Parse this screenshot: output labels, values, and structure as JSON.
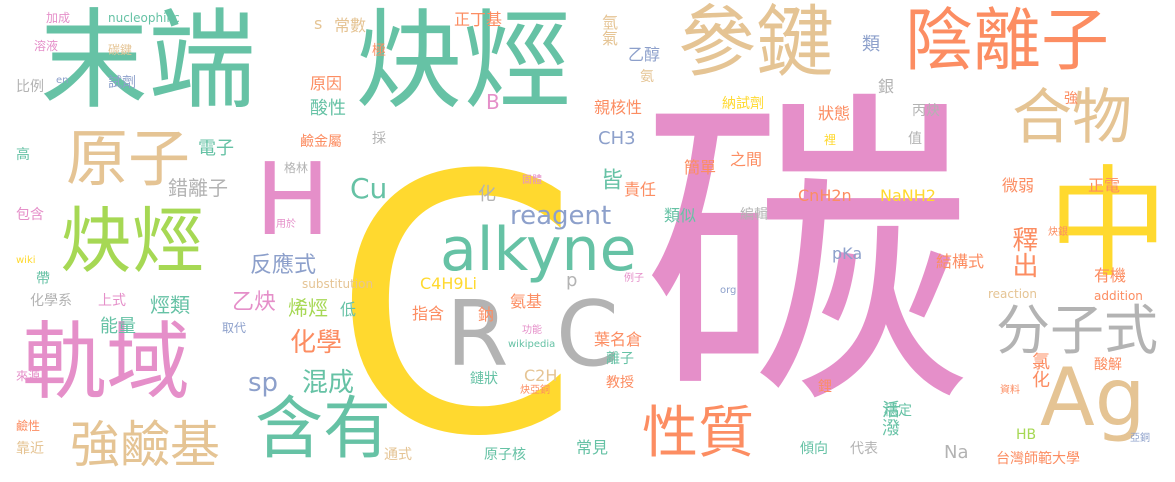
{
  "palette": {
    "pink": "#e58fc9",
    "green": "#66c2a5",
    "yellow": "#ffd92f",
    "tan": "#e5c494",
    "orange": "#fc8d62",
    "blue": "#8da0cb",
    "lime": "#a6d854",
    "gray": "#b3b3b3"
  },
  "words": [
    {
      "id": "carbon",
      "text": "碳",
      "color": "pink"
    },
    {
      "id": "big-c",
      "text": "C",
      "color": "yellow"
    },
    {
      "id": "terminal",
      "text": "末端",
      "color": "green"
    },
    {
      "id": "alkyne-zh",
      "text": "炔烴",
      "color": "green"
    },
    {
      "id": "participate-bond",
      "text": "參鍵",
      "color": "tan"
    },
    {
      "id": "anion",
      "text": "陰離子",
      "color": "orange"
    },
    {
      "id": "compound",
      "text": "合物",
      "color": "tan"
    },
    {
      "id": "middle",
      "text": "中",
      "color": "yellow"
    },
    {
      "id": "atom",
      "text": "原子",
      "color": "tan"
    },
    {
      "id": "h",
      "text": "H",
      "color": "pink"
    },
    {
      "id": "alkyne-zh-2",
      "text": "炔烴",
      "color": "lime"
    },
    {
      "id": "orbital",
      "text": "軌域",
      "color": "pink"
    },
    {
      "id": "alkyne-en",
      "text": "alkyne",
      "color": "green"
    },
    {
      "id": "r",
      "text": "R",
      "color": "gray"
    },
    {
      "id": "c-gray",
      "text": "C",
      "color": "gray"
    },
    {
      "id": "molecular-formula",
      "text": "分子式",
      "color": "gray"
    },
    {
      "id": "ag",
      "text": "Ag",
      "color": "tan"
    },
    {
      "id": "contains",
      "text": "含有",
      "color": "green"
    },
    {
      "id": "nature",
      "text": "性質",
      "color": "orange"
    },
    {
      "id": "strong-base",
      "text": "強鹼基",
      "color": "tan"
    },
    {
      "id": "reagent",
      "text": "reagent",
      "color": "blue"
    },
    {
      "id": "cu",
      "text": "Cu",
      "color": "green"
    },
    {
      "id": "sp",
      "text": "sp",
      "color": "blue"
    },
    {
      "id": "hybrid",
      "text": "混成",
      "color": "green"
    },
    {
      "id": "chemistry",
      "text": "化學",
      "color": "orange"
    },
    {
      "id": "reaction-formula",
      "text": "反應式",
      "color": "blue"
    },
    {
      "id": "acetylene",
      "text": "乙炔",
      "color": "pink"
    },
    {
      "id": "alkene",
      "text": "烯烴",
      "color": "lime"
    },
    {
      "id": "hydrocarbon",
      "text": "烴類",
      "color": "green"
    },
    {
      "id": "energy",
      "text": "能量",
      "color": "green"
    },
    {
      "id": "wrong-ion",
      "text": "錯離子",
      "color": "gray"
    },
    {
      "id": "electron",
      "text": "電子",
      "color": "green"
    },
    {
      "id": "alkali-metal",
      "text": "鹼金屬",
      "color": "orange"
    },
    {
      "id": "acidic",
      "text": "酸性",
      "color": "green"
    },
    {
      "id": "reason",
      "text": "原因",
      "color": "orange"
    },
    {
      "id": "reagent-zh",
      "text": "試劑",
      "color": "blue"
    },
    {
      "id": "constant",
      "text": "常數",
      "color": "tan"
    },
    {
      "id": "n-butyl",
      "text": "正丁基",
      "color": "orange"
    },
    {
      "id": "hydrogen-gas",
      "text": "氫氣",
      "color": "tan"
    },
    {
      "id": "ethanol",
      "text": "乙醇",
      "color": "blue"
    },
    {
      "id": "ammonia",
      "text": "氨",
      "color": "tan"
    },
    {
      "id": "nucleophilic-zh",
      "text": "親核性",
      "color": "orange"
    },
    {
      "id": "sodium-reagent",
      "text": "納試劑",
      "color": "yellow"
    },
    {
      "id": "state",
      "text": "狀態",
      "color": "orange"
    },
    {
      "id": "propyne",
      "text": "丙炔",
      "color": "gray"
    },
    {
      "id": "ch3",
      "text": "CH3",
      "color": "blue"
    },
    {
      "id": "simple",
      "text": "簡單",
      "color": "orange"
    },
    {
      "id": "between",
      "text": "之間",
      "color": "orange"
    },
    {
      "id": "responsibility",
      "text": "責任",
      "color": "orange"
    },
    {
      "id": "similar",
      "text": "類似",
      "color": "green"
    },
    {
      "id": "cnh2n",
      "text": "CnH2n",
      "color": "orange"
    },
    {
      "id": "nanh2",
      "text": "NaNH2",
      "color": "yellow"
    },
    {
      "id": "edit",
      "text": "編輯",
      "color": "gray"
    },
    {
      "id": "weak",
      "text": "微弱",
      "color": "orange"
    },
    {
      "id": "positive-charge",
      "text": "正電",
      "color": "orange"
    },
    {
      "id": "release",
      "text": "釋出",
      "color": "orange"
    },
    {
      "id": "organic",
      "text": "有機",
      "color": "orange"
    },
    {
      "id": "structural-formula",
      "text": "結構式",
      "color": "orange"
    },
    {
      "id": "pka",
      "text": "pKa",
      "color": "blue"
    },
    {
      "id": "c4h9li",
      "text": "C4H9Li",
      "color": "yellow"
    },
    {
      "id": "amino",
      "text": "氨基",
      "color": "orange"
    },
    {
      "id": "indicate",
      "text": "指含",
      "color": "orange"
    },
    {
      "id": "p",
      "text": "p",
      "color": "gray"
    },
    {
      "id": "ye-ming-cang",
      "text": "葉名倉",
      "color": "orange"
    },
    {
      "id": "ion",
      "text": "離子",
      "color": "green"
    },
    {
      "id": "c2h",
      "text": "C2H",
      "color": "tan"
    },
    {
      "id": "chain",
      "text": "鏈狀",
      "color": "green"
    },
    {
      "id": "professor",
      "text": "教授",
      "color": "orange"
    },
    {
      "id": "common",
      "text": "常見",
      "color": "green"
    },
    {
      "id": "active",
      "text": "活潑",
      "color": "green"
    },
    {
      "id": "na",
      "text": "Na",
      "color": "gray"
    },
    {
      "id": "ntnu",
      "text": "台灣師範大學",
      "color": "orange"
    },
    {
      "id": "nucleus",
      "text": "原子核",
      "color": "green"
    },
    {
      "id": "general-formula",
      "text": "通式",
      "color": "tan"
    },
    {
      "id": "close",
      "text": "靠近",
      "color": "tan"
    },
    {
      "id": "alkalinity",
      "text": "鹼性",
      "color": "orange"
    },
    {
      "id": "source",
      "text": "來源",
      "color": "pink"
    },
    {
      "id": "include",
      "text": "包含",
      "color": "pink"
    },
    {
      "id": "band",
      "text": "帶",
      "color": "green"
    },
    {
      "id": "chem-dept",
      "text": "化學系",
      "color": "gray"
    },
    {
      "id": "upper-formula",
      "text": "上式",
      "color": "pink"
    },
    {
      "id": "replace",
      "text": "取代",
      "color": "blue"
    },
    {
      "id": "low",
      "text": "低",
      "color": "green"
    },
    {
      "id": "high",
      "text": "高",
      "color": "green"
    },
    {
      "id": "ratio",
      "text": "比例",
      "color": "gray"
    },
    {
      "id": "add",
      "text": "加成",
      "color": "pink"
    },
    {
      "id": "solution",
      "text": "溶液",
      "color": "pink"
    },
    {
      "id": "carbon-bond",
      "text": "碳鍵",
      "color": "tan"
    },
    {
      "id": "nucleophilic-en",
      "text": "nucleophilic",
      "color": "green"
    },
    {
      "id": "en",
      "text": "en",
      "color": "blue"
    },
    {
      "id": "s",
      "text": "s",
      "color": "tan"
    },
    {
      "id": "extreme",
      "text": "極",
      "color": "orange"
    },
    {
      "id": "b",
      "text": "B",
      "color": "pink"
    },
    {
      "id": "silver",
      "text": "銀",
      "color": "gray"
    },
    {
      "id": "class",
      "text": "類",
      "color": "blue"
    },
    {
      "id": "grignard",
      "text": "格林",
      "color": "gray"
    },
    {
      "id": "adopt",
      "text": "採",
      "color": "gray"
    },
    {
      "id": "used-for",
      "text": "用於",
      "color": "pink"
    },
    {
      "id": "substitution",
      "text": "substitution",
      "color": "tan"
    },
    {
      "id": "wiki",
      "text": "wiki",
      "color": "yellow"
    },
    {
      "id": "wikipedia",
      "text": "wikipedia",
      "color": "green"
    },
    {
      "id": "function",
      "text": "功能",
      "color": "pink"
    },
    {
      "id": "sodium",
      "text": "鈉",
      "color": "orange"
    },
    {
      "id": "firmly-bonded",
      "text": "固體",
      "color": "pink"
    },
    {
      "id": "example",
      "text": "例子",
      "color": "pink"
    },
    {
      "id": "org",
      "text": "org",
      "color": "blue"
    },
    {
      "id": "alkynyl-copper",
      "text": "炔亞銅",
      "color": "orange"
    },
    {
      "id": "acid-dissociation",
      "text": "酸解",
      "color": "orange"
    },
    {
      "id": "chloride",
      "text": "氯化",
      "color": "orange"
    },
    {
      "id": "lithium",
      "text": "鋰",
      "color": "orange"
    },
    {
      "id": "stable",
      "text": "穩定",
      "color": "green"
    },
    {
      "id": "value",
      "text": "值",
      "color": "gray"
    },
    {
      "id": "inside",
      "text": "裡",
      "color": "yellow"
    },
    {
      "id": "tendency",
      "text": "傾向",
      "color": "green"
    },
    {
      "id": "representative",
      "text": "代表",
      "color": "gray"
    },
    {
      "id": "hb",
      "text": "HB",
      "color": "lime"
    },
    {
      "id": "alkynyl-silver",
      "text": "炔銀",
      "color": "orange"
    },
    {
      "id": "reaction",
      "text": "reaction",
      "color": "tan"
    },
    {
      "id": "addition",
      "text": "addition",
      "color": "orange"
    },
    {
      "id": "data",
      "text": "資料",
      "color": "orange"
    },
    {
      "id": "cuprous",
      "text": "亞銅",
      "color": "blue"
    },
    {
      "id": "strong",
      "text": "強",
      "color": "orange"
    },
    {
      "id": "chem-change",
      "text": "化",
      "color": "gray"
    },
    {
      "id": "all",
      "text": "皆",
      "color": "green"
    }
  ]
}
